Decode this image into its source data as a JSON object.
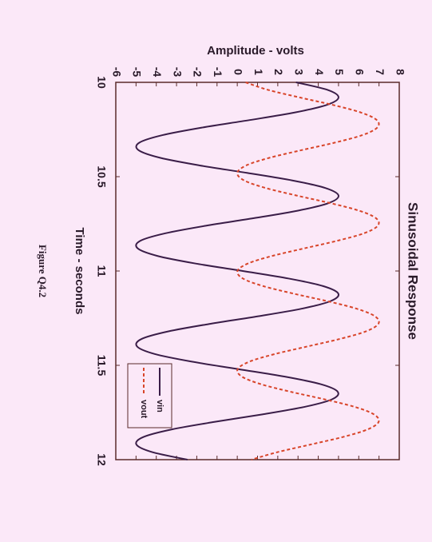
{
  "chart_data": {
    "type": "line",
    "title": "Sinusoidal Response",
    "xlabel": "Time - seconds",
    "ylabel": "Amplitude - volts",
    "caption": "Figure Q4.2",
    "x": [
      10,
      10.04,
      10.08,
      10.12,
      10.16,
      10.2,
      10.24,
      10.28,
      10.32,
      10.36,
      10.4,
      10.44,
      10.48,
      10.52,
      10.56,
      10.6,
      10.64,
      10.68,
      10.72,
      10.76,
      10.8,
      10.84,
      10.88,
      10.92,
      10.96,
      11,
      11.04,
      11.08,
      11.12,
      11.16,
      11.2,
      11.24,
      11.28,
      11.32,
      11.36,
      11.4,
      11.44,
      11.48,
      11.52,
      11.56,
      11.6,
      11.64,
      11.68,
      11.72,
      11.76,
      11.8,
      11.84,
      11.88,
      11.92,
      11.96,
      12
    ],
    "series": [
      {
        "name": "vin",
        "color": "#3a1d48",
        "dash": false,
        "values": [
          2.9,
          4.46,
          5.0,
          4.41,
          2.83,
          0.61,
          -1.75,
          -3.7,
          -4.84,
          -4.87,
          -3.81,
          -1.88,
          0.48,
          2.72,
          4.35,
          5.0,
          4.51,
          3.0,
          0.82,
          -1.55,
          -3.55,
          -4.79,
          -4.92,
          -3.95,
          -2.08,
          0.27,
          2.54,
          4.24,
          4.99,
          4.6,
          3.17,
          1.03,
          -1.34,
          -3.4,
          -4.72,
          -4.95,
          -4.08,
          -2.27,
          0.05,
          2.35,
          4.12,
          4.96,
          4.68,
          3.33,
          1.24,
          -1.13,
          -3.25,
          -4.64,
          -4.98,
          -4.2,
          -2.46
        ]
      },
      {
        "name": "vout",
        "color": "#d8452a",
        "dash": true,
        "values": [
          0.41,
          1.52,
          3.08,
          4.73,
          6.11,
          6.89,
          6.91,
          6.17,
          4.8,
          3.15,
          1.59,
          0.45,
          0.0,
          0.34,
          1.4,
          2.93,
          4.59,
          6.01,
          6.85,
          6.94,
          6.26,
          4.93,
          3.31,
          1.73,
          0.53,
          0.01,
          0.28,
          1.28,
          2.78,
          4.45,
          5.9,
          6.8,
          6.97,
          6.35,
          5.07,
          3.46,
          1.86,
          0.61,
          0.02,
          0.23,
          1.17,
          2.63,
          4.3,
          5.79,
          6.75,
          6.98,
          6.43,
          5.21,
          3.61,
          1.99,
          0.7
        ]
      }
    ],
    "xlim": [
      10,
      12
    ],
    "xticks": [
      10,
      10.5,
      11,
      11.5,
      12
    ],
    "ylim": [
      -6,
      8
    ],
    "yticks": [
      -6,
      -5,
      -4,
      -3,
      -2,
      -1,
      0,
      1,
      2,
      3,
      4,
      5,
      6,
      7,
      8
    ]
  }
}
